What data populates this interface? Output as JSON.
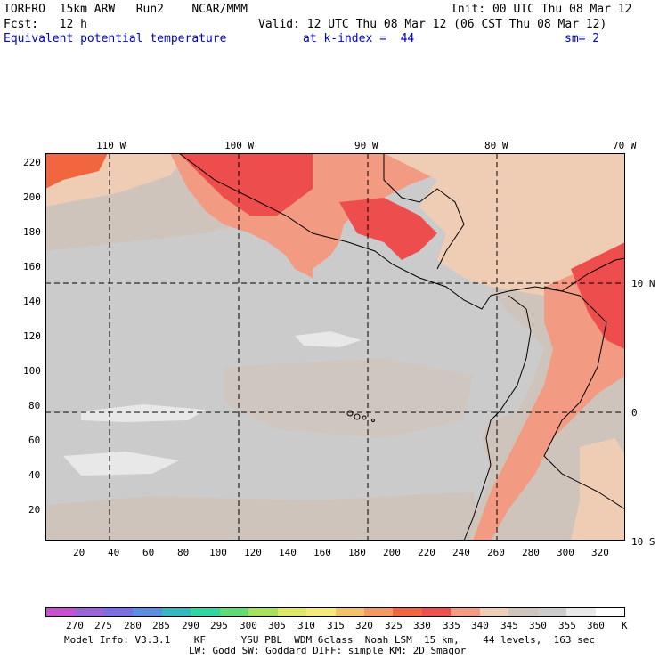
{
  "header": {
    "model": "TORERO  15km ARW   Run2    NCAR/MMM",
    "init": "Init: 00 UTC Thu 08 Mar 12",
    "fcst": "Fcst:   12 h",
    "valid": "Valid: 12 UTC Thu 08 Mar 12 (06 CST Thu 08 Mar 12)",
    "field": "Equivalent potential temperature",
    "level": "at k-index =  44",
    "smooth": "sm= 2"
  },
  "map": {
    "top_lon_labels": [
      "110 W",
      "100 W",
      "90 W",
      "80 W",
      "70 W"
    ],
    "right_lat_labels": [
      "10 N",
      "0",
      "10 S"
    ],
    "y_ticks": [
      "220",
      "200",
      "180",
      "160",
      "140",
      "120",
      "100",
      "80",
      "60",
      "40",
      "20"
    ],
    "x_ticks": [
      "20",
      "40",
      "60",
      "80",
      "100",
      "120",
      "140",
      "160",
      "180",
      "200",
      "220",
      "240",
      "260",
      "280",
      "300",
      "320"
    ]
  },
  "colorbar": {
    "unit": "K",
    "labels": [
      "270",
      "275",
      "280",
      "285",
      "290",
      "295",
      "300",
      "305",
      "310",
      "315",
      "320",
      "325",
      "330",
      "335",
      "340",
      "345",
      "350",
      "355",
      "360"
    ],
    "colors": [
      "#c84fd0",
      "#9b63d6",
      "#7b6ee2",
      "#5a8ee0",
      "#32b7c3",
      "#2fd7a5",
      "#5fdc73",
      "#a5e25a",
      "#dfe767",
      "#f4ea7a",
      "#f5c26a",
      "#f39a62",
      "#f1653f",
      "#ee4d4d",
      "#f29b82",
      "#efcdb4",
      "#cfc4bc",
      "#cbcbcb",
      "#e8e8e8",
      "#ffffff"
    ]
  },
  "footer": {
    "line1": "Model Info: V3.3.1    KF      YSU PBL  WDM 6class  Noah LSM  15 km,    44 levels,  163 sec",
    "line2": "LW: Godd SW: Goddard DIFF: simple KM: 2D Smagor"
  }
}
